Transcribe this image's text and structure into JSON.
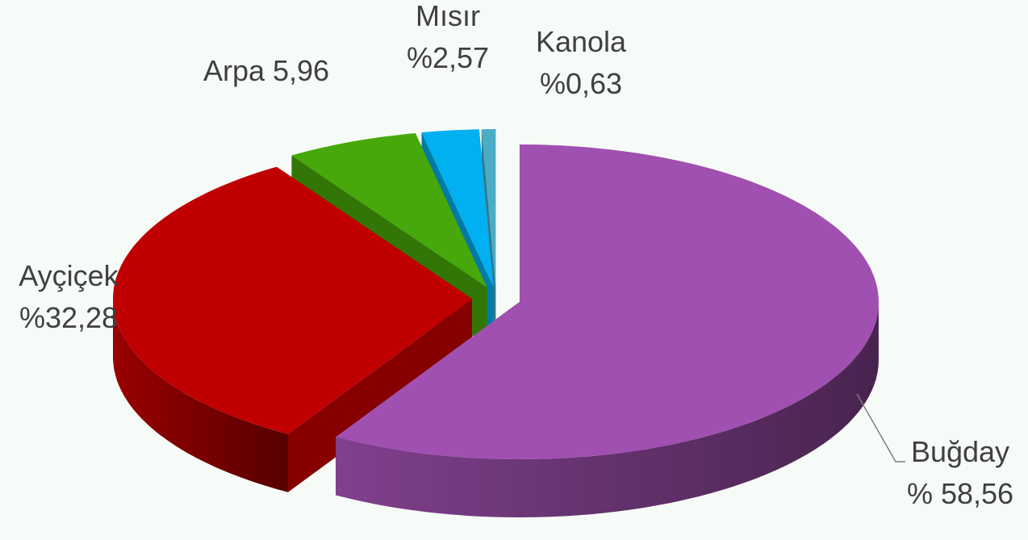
{
  "chart_data": {
    "type": "pie",
    "categories": [
      "Buğday",
      "Ayçiçek",
      "Arpa",
      "Mısır",
      "Kanola"
    ],
    "values": [
      58.56,
      32.28,
      5.96,
      2.57,
      0.63
    ],
    "value_labels": [
      "% 58,56",
      "%32,28",
      "5,96",
      "%2,57",
      "%0,63"
    ],
    "colors": [
      "#a050b0",
      "#c00000",
      "#46a80a",
      "#00b0f0",
      "#4bacc6"
    ]
  }
}
